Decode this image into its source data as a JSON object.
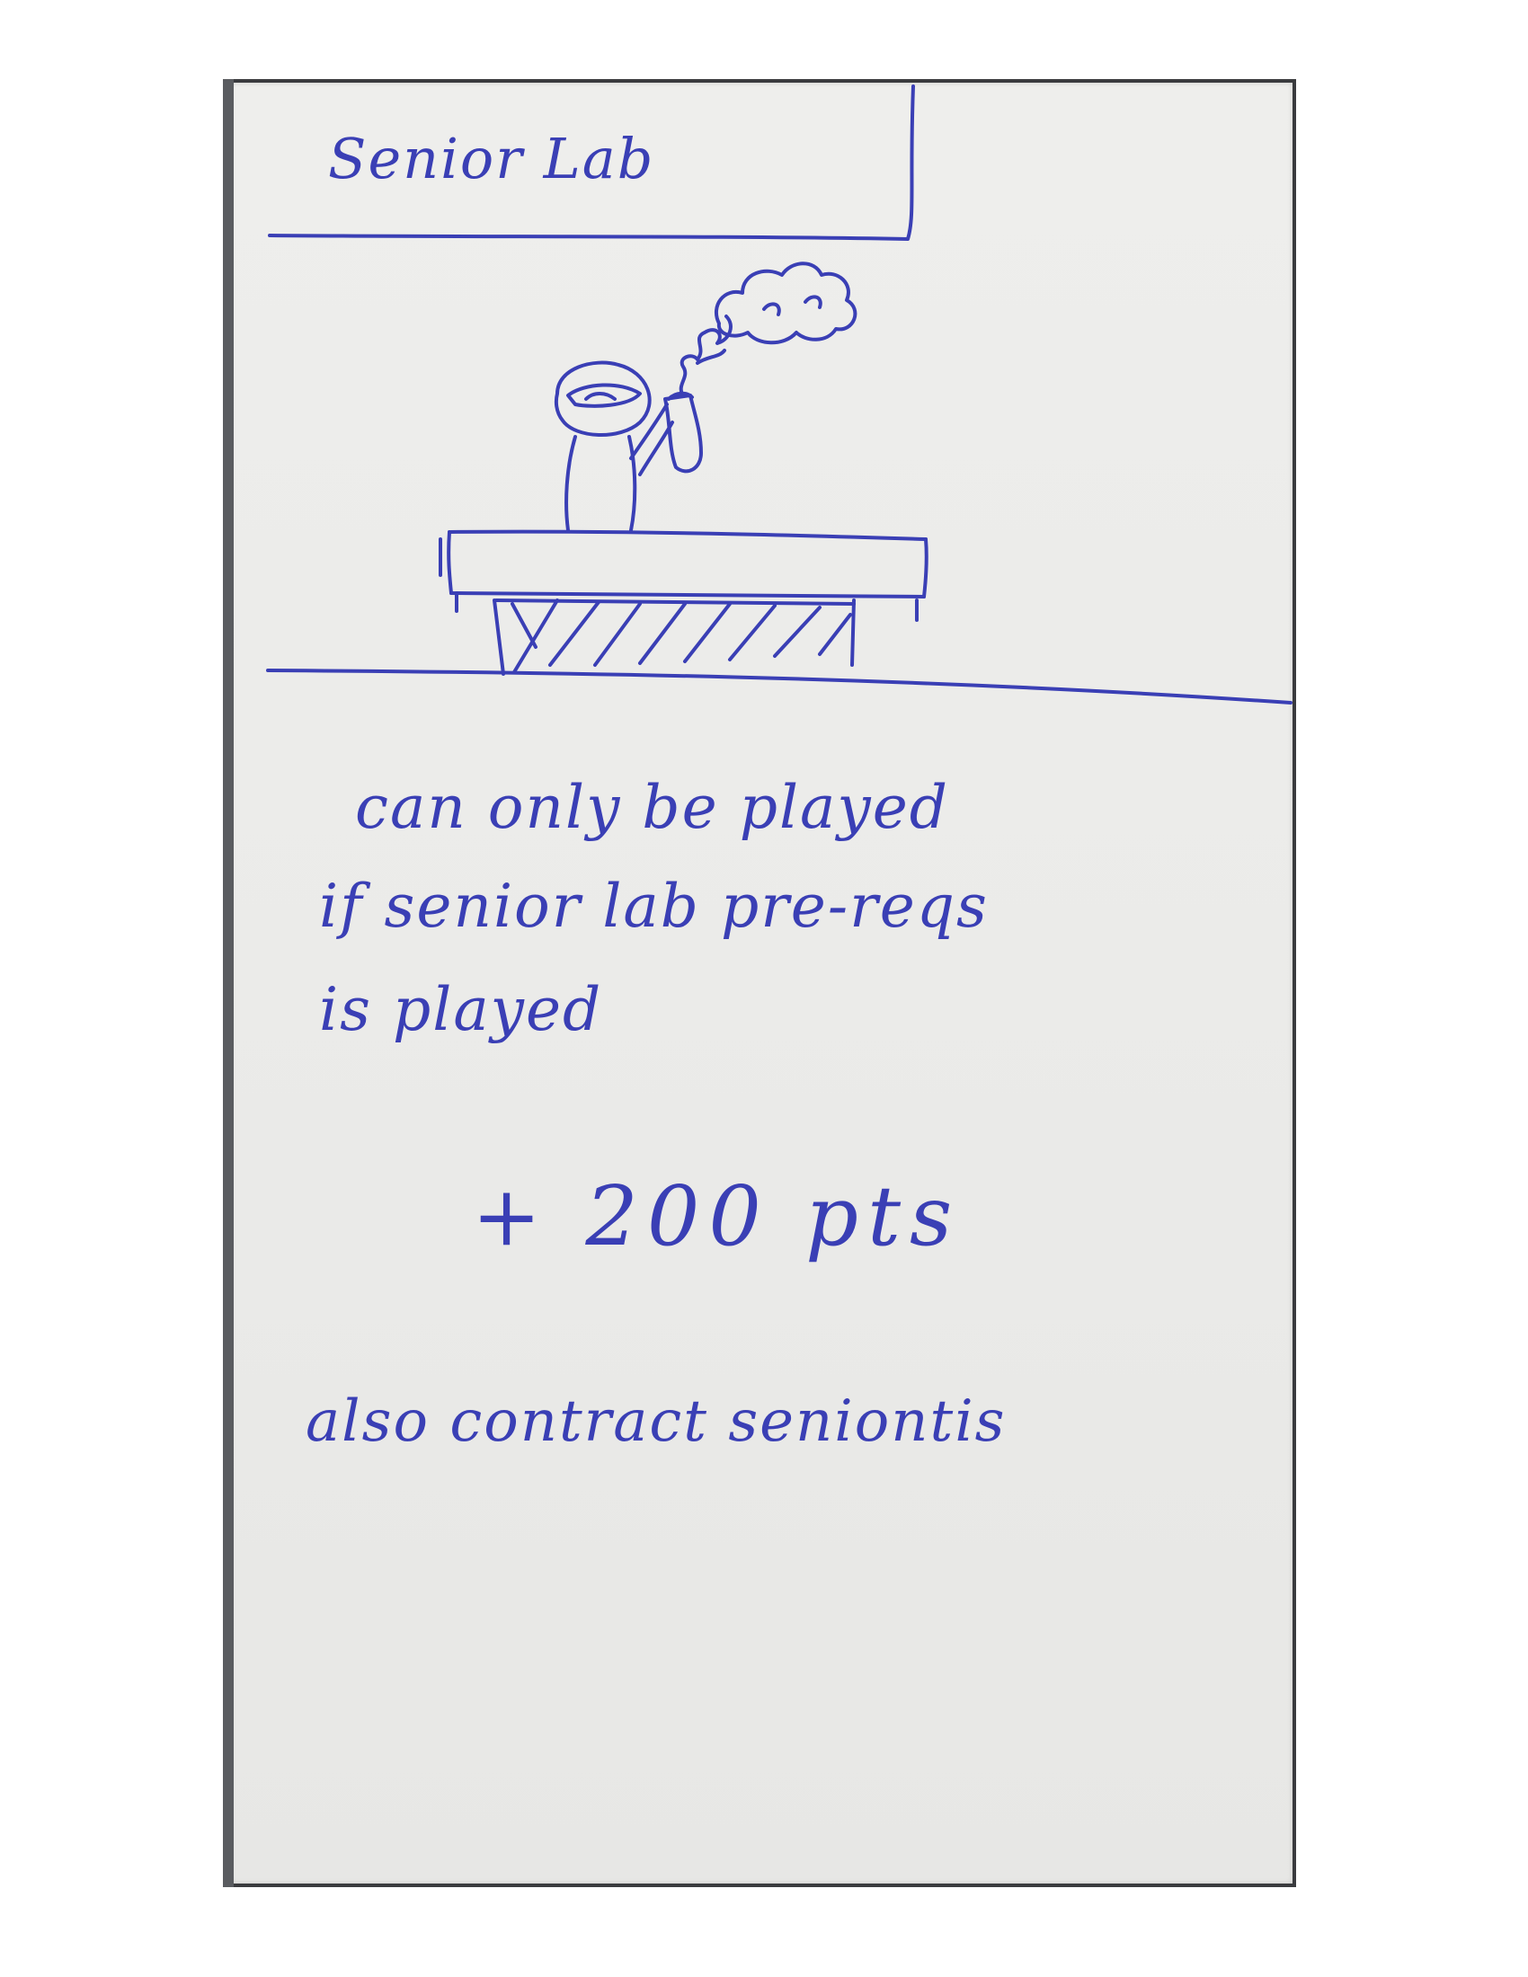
{
  "card": {
    "title": "Senior Lab",
    "rules": [
      "can only be played",
      "if senior lab pre-reqs",
      "is played"
    ],
    "points": "+ 200 pts",
    "side_effect": "also contract seniontis"
  },
  "ink_color": "#3a3fb5",
  "card_color": "#ececea",
  "backdrop_color": "#3a3b3e"
}
